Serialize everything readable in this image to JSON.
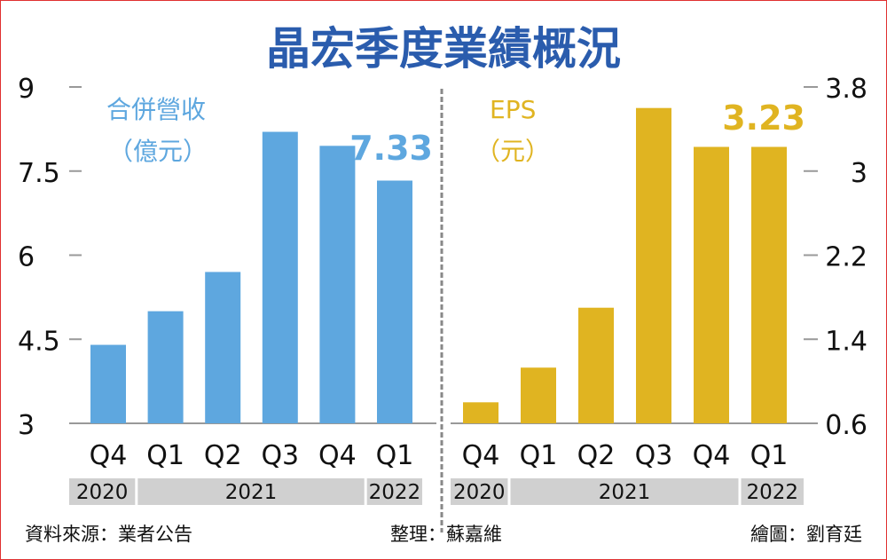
{
  "title": "晶宏季度業績概況",
  "footer": {
    "source": "資料來源：業者公告",
    "editor": "整理：蘇嘉維",
    "artist": "繪圖：劉育廷"
  },
  "colors": {
    "title": "#2a5cad",
    "revenue": "#5ea7df",
    "eps": "#e0b421",
    "year_band": "#d0d0d0",
    "background": "#ffffff",
    "border": "#e03030"
  },
  "chart_data": [
    {
      "type": "bar",
      "label_line1": "合併營收",
      "label_line2": "（億元）",
      "categories": [
        "Q4",
        "Q1",
        "Q2",
        "Q3",
        "Q4",
        "Q1"
      ],
      "years": [
        {
          "label": "2020",
          "span": 1
        },
        {
          "label": "2021",
          "span": 4
        },
        {
          "label": "2022",
          "span": 1
        }
      ],
      "values": [
        4.4,
        5.0,
        5.7,
        8.2,
        7.95,
        7.33
      ],
      "highlight_label": "7.33",
      "ylim": [
        3,
        9
      ],
      "yticks": [
        "9",
        "7.5",
        "6",
        "4.5",
        "3"
      ],
      "axis_side": "left"
    },
    {
      "type": "bar",
      "label_line1": "EPS",
      "label_line2": "（元）",
      "categories": [
        "Q4",
        "Q1",
        "Q2",
        "Q3",
        "Q4",
        "Q1"
      ],
      "years": [
        {
          "label": "2020",
          "span": 1
        },
        {
          "label": "2021",
          "span": 4
        },
        {
          "label": "2022",
          "span": 1
        }
      ],
      "values": [
        0.8,
        1.13,
        1.7,
        3.6,
        3.23,
        3.23
      ],
      "highlight_label": "3.23",
      "ylim": [
        0.6,
        3.8
      ],
      "yticks": [
        "3.8",
        "3",
        "2.2",
        "1.4",
        "0.6"
      ],
      "axis_side": "right"
    }
  ]
}
